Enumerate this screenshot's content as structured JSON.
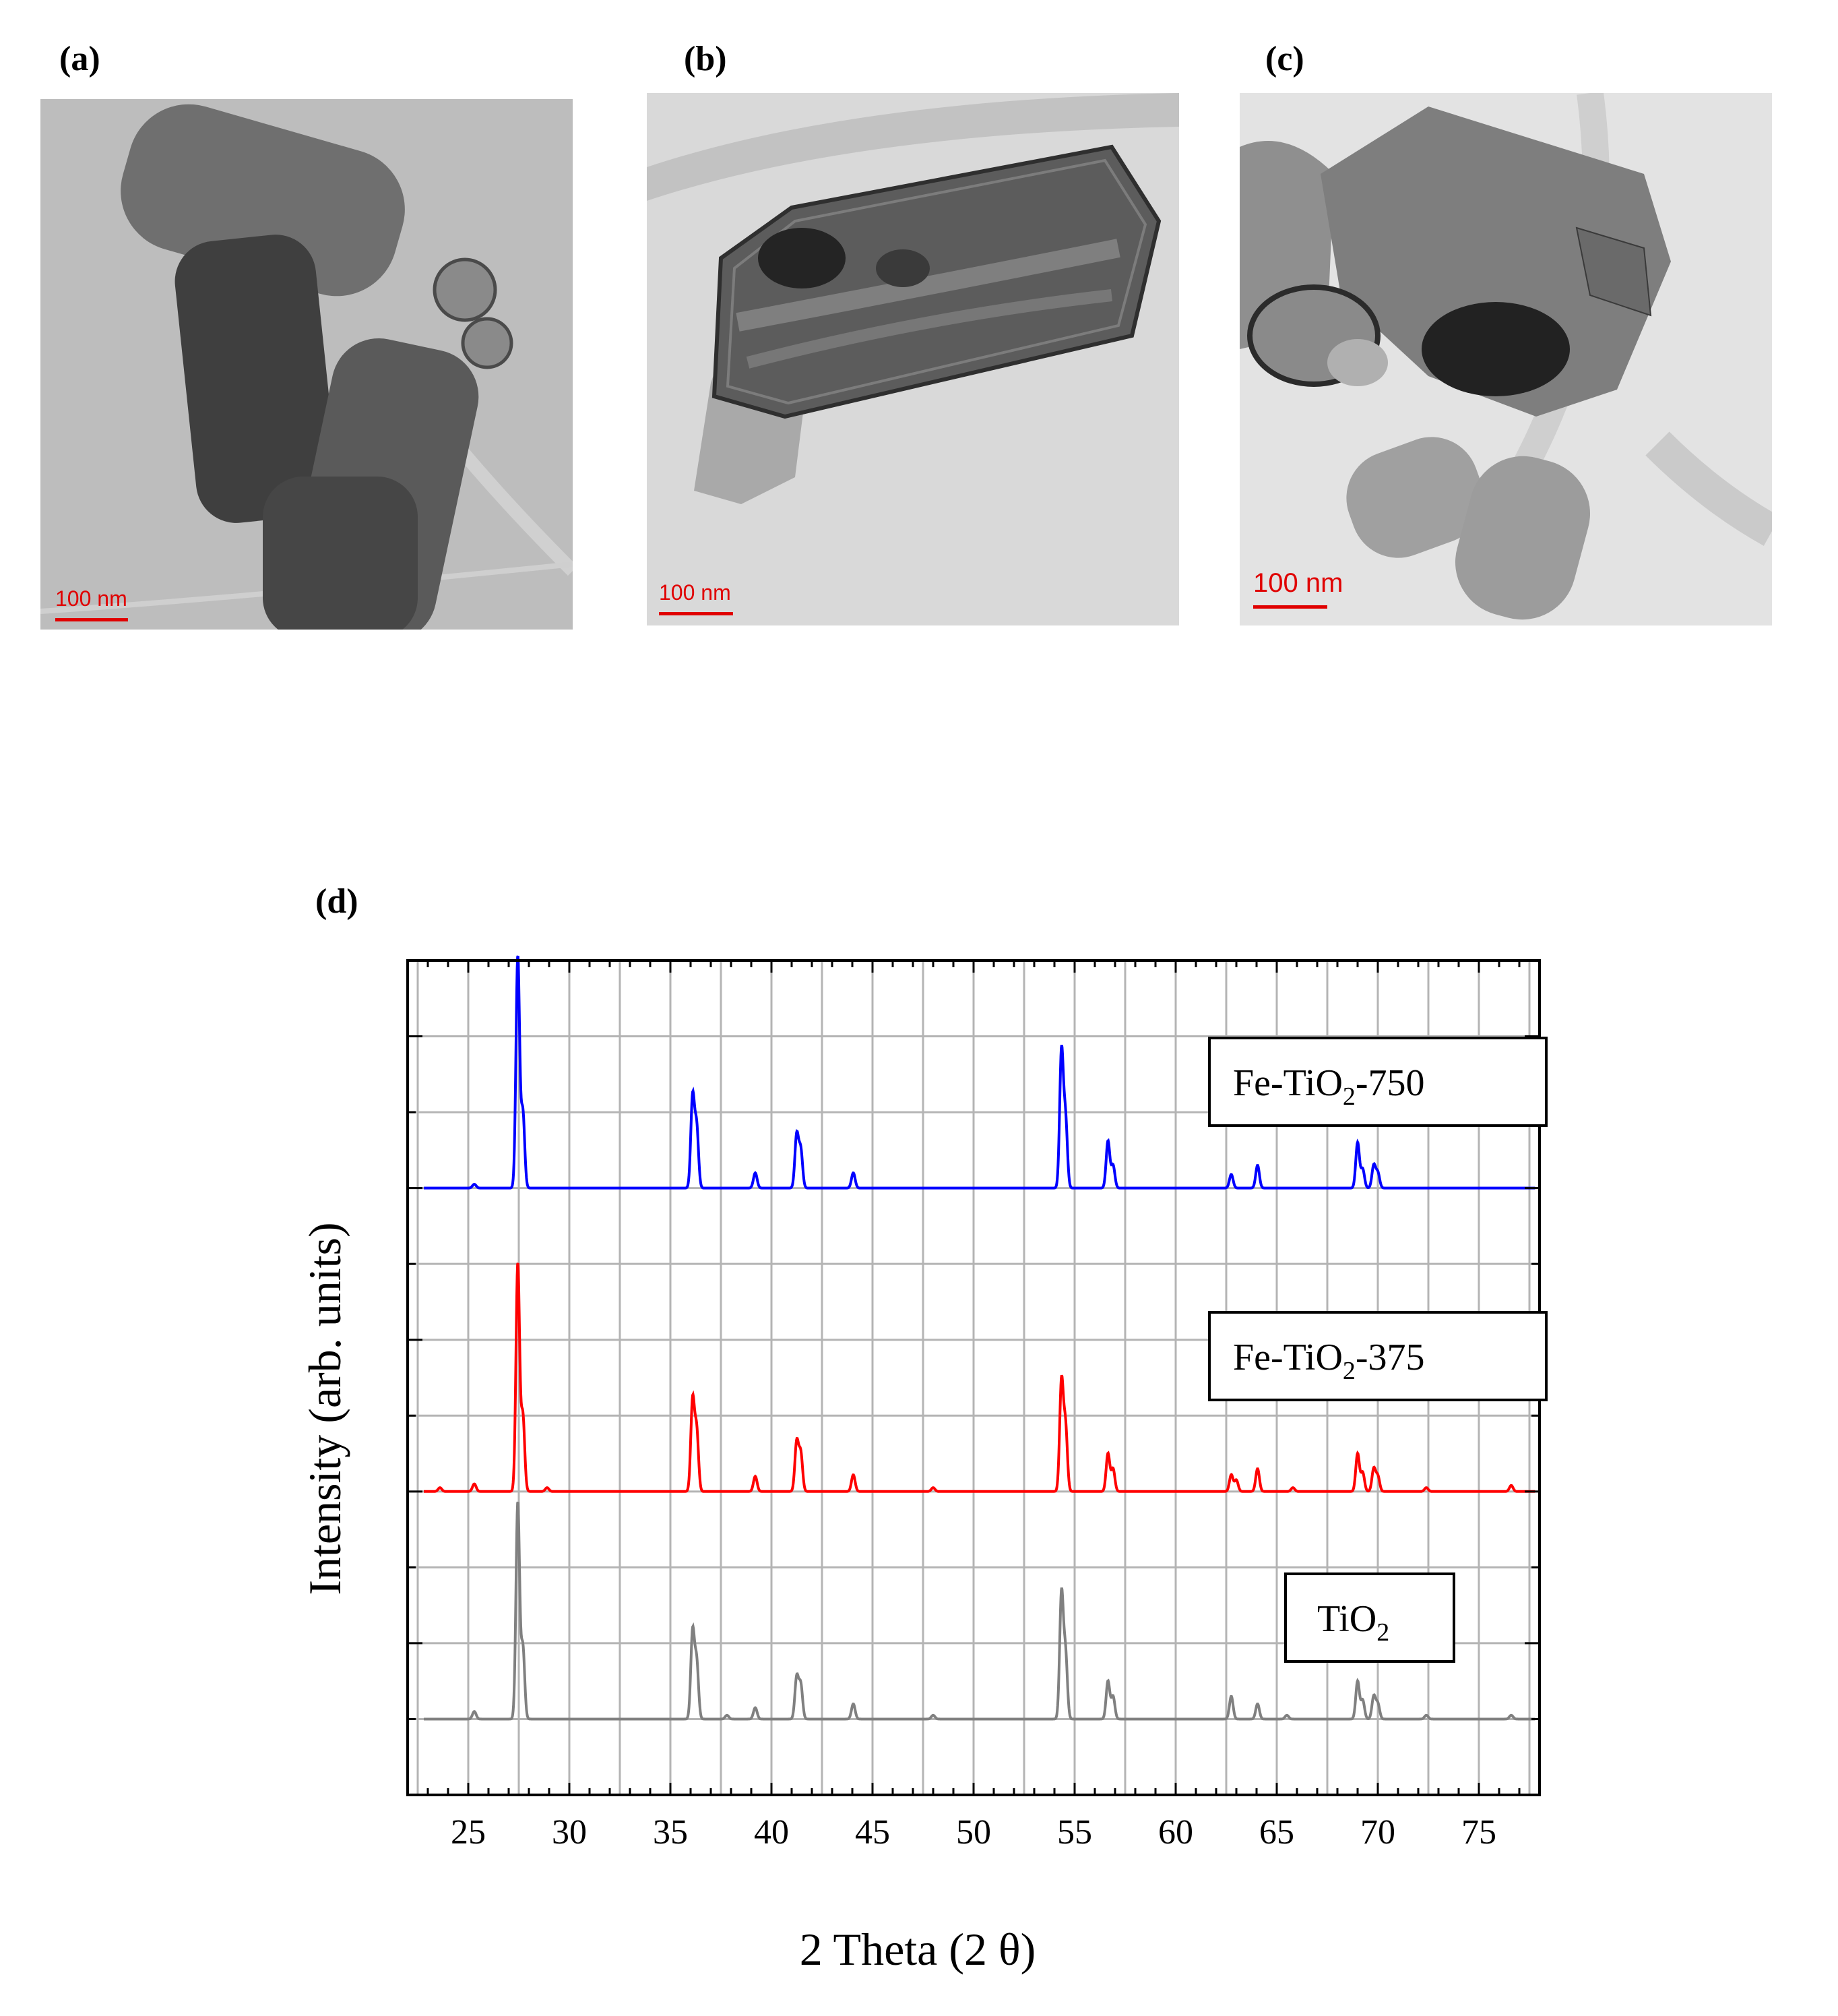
{
  "panels": {
    "a": {
      "label": "(a)",
      "scale_bar": "100 nm"
    },
    "b": {
      "label": "(b)",
      "scale_bar": "100 nm"
    },
    "c": {
      "label": "(c)",
      "scale_bar": "100 nm"
    },
    "d": {
      "label": "(d)"
    }
  },
  "colors": {
    "series_750": "#0000ff",
    "series_375": "#ff0000",
    "series_tio2": "#808080",
    "scale_bar": "#e00000",
    "grid": "#b4b4b4"
  },
  "chart_data": {
    "type": "line",
    "xlabel": "2 Theta (2 θ)",
    "ylabel": "Intensity (arb. units)",
    "xlim": [
      22,
      78
    ],
    "ylim": [
      0,
      11
    ],
    "x_ticks": [
      25,
      30,
      35,
      40,
      45,
      50,
      55,
      60,
      65,
      70,
      75
    ],
    "grid": true,
    "series": [
      {
        "name": "Fe-TiO2-750",
        "legend": {
          "main": "Fe-TiO",
          "sub": "2",
          "tail": "-750"
        },
        "color": "#0000ff",
        "baseline": 8.0,
        "peaks": [
          [
            25.3,
            0.05
          ],
          [
            27.45,
            3.05
          ],
          [
            27.7,
            1.0
          ],
          [
            36.1,
            1.2
          ],
          [
            36.3,
            0.8
          ],
          [
            39.2,
            0.2
          ],
          [
            41.25,
            0.7
          ],
          [
            41.45,
            0.5
          ],
          [
            44.05,
            0.2
          ],
          [
            54.35,
            1.8
          ],
          [
            54.55,
            0.9
          ],
          [
            56.65,
            0.62
          ],
          [
            56.9,
            0.3
          ],
          [
            62.75,
            0.18
          ],
          [
            64.05,
            0.3
          ],
          [
            69.0,
            0.6
          ],
          [
            69.25,
            0.25
          ],
          [
            69.8,
            0.3
          ],
          [
            70.0,
            0.2
          ]
        ]
      },
      {
        "name": "Fe-TiO2-375",
        "legend": {
          "main": "Fe-TiO",
          "sub": "2",
          "tail": "-375"
        },
        "color": "#ff0000",
        "baseline": 4.0,
        "peaks": [
          [
            23.6,
            0.05
          ],
          [
            25.3,
            0.1
          ],
          [
            27.45,
            3.0
          ],
          [
            27.7,
            1.0
          ],
          [
            28.9,
            0.05
          ],
          [
            36.1,
            1.2
          ],
          [
            36.3,
            0.8
          ],
          [
            39.2,
            0.2
          ],
          [
            41.25,
            0.65
          ],
          [
            41.45,
            0.5
          ],
          [
            44.05,
            0.22
          ],
          [
            48.0,
            0.05
          ],
          [
            54.35,
            1.45
          ],
          [
            54.55,
            0.85
          ],
          [
            56.65,
            0.5
          ],
          [
            56.9,
            0.3
          ],
          [
            62.75,
            0.22
          ],
          [
            63.0,
            0.15
          ],
          [
            64.05,
            0.3
          ],
          [
            65.8,
            0.05
          ],
          [
            69.0,
            0.5
          ],
          [
            69.25,
            0.25
          ],
          [
            69.8,
            0.3
          ],
          [
            70.0,
            0.2
          ],
          [
            72.4,
            0.05
          ],
          [
            76.6,
            0.08
          ]
        ]
      },
      {
        "name": "TiO2",
        "legend": {
          "main": "TiO",
          "sub": "2",
          "tail": ""
        },
        "color": "#808080",
        "baseline": 1.0,
        "peaks": [
          [
            25.3,
            0.1
          ],
          [
            27.45,
            2.85
          ],
          [
            27.7,
            0.95
          ],
          [
            36.1,
            1.15
          ],
          [
            36.3,
            0.75
          ],
          [
            37.8,
            0.05
          ],
          [
            39.2,
            0.15
          ],
          [
            41.25,
            0.55
          ],
          [
            41.45,
            0.45
          ],
          [
            44.05,
            0.2
          ],
          [
            48.0,
            0.05
          ],
          [
            54.35,
            1.65
          ],
          [
            54.55,
            0.85
          ],
          [
            56.65,
            0.5
          ],
          [
            56.9,
            0.3
          ],
          [
            62.75,
            0.3
          ],
          [
            64.05,
            0.2
          ],
          [
            65.5,
            0.05
          ],
          [
            69.0,
            0.5
          ],
          [
            69.25,
            0.25
          ],
          [
            69.8,
            0.3
          ],
          [
            70.0,
            0.2
          ],
          [
            72.4,
            0.05
          ],
          [
            76.6,
            0.05
          ]
        ]
      }
    ]
  }
}
